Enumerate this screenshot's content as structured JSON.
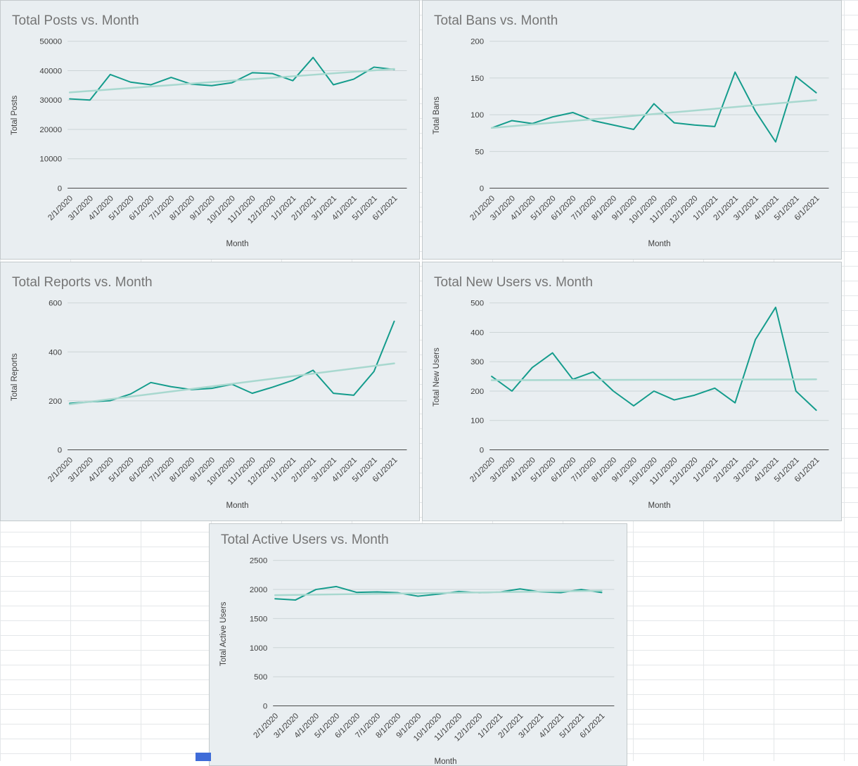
{
  "colors": {
    "series_line": "#149c8c",
    "trend_line": "#a8d8cf",
    "chart_background": "#e9eef1",
    "chart_border": "#c3c9cb",
    "title_text": "#757575",
    "axis_text": "#3f3f3f",
    "gridline": "#ccd4d6",
    "axis_line": "#4a4a4a",
    "grid_cell_line": "#e4e7e9",
    "scroll_fragment": "#3e6bd8"
  },
  "chart_data": [
    {
      "type": "line",
      "title": "Total Posts vs. Month",
      "xlabel": "Month",
      "ylabel": "Total Posts",
      "ylim": [
        0,
        50000
      ],
      "yticks": [
        0,
        10000,
        20000,
        30000,
        40000,
        50000
      ],
      "grid": "horizontal",
      "legend": "none",
      "categories": [
        "2/1/2020",
        "3/1/2020",
        "4/1/2020",
        "5/1/2020",
        "6/1/2020",
        "7/1/2020",
        "8/1/2020",
        "9/1/2020",
        "10/1/2020",
        "11/1/2020",
        "12/1/2020",
        "1/1/2021",
        "2/1/2021",
        "3/1/2021",
        "4/1/2021",
        "5/1/2021",
        "6/1/2021"
      ],
      "series": [
        {
          "name": "Total Posts",
          "values": [
            30400,
            30000,
            38700,
            36100,
            35200,
            37700,
            35400,
            34900,
            35900,
            39300,
            39000,
            36600,
            44500,
            35200,
            37100,
            41200,
            40400
          ]
        }
      ],
      "trendline": {
        "start": 32600,
        "end": 40600
      }
    },
    {
      "type": "line",
      "title": "Total Bans vs. Month",
      "xlabel": "Month",
      "ylabel": "Total Bans",
      "ylim": [
        0,
        200
      ],
      "yticks": [
        0,
        50,
        100,
        150,
        200
      ],
      "grid": "horizontal",
      "legend": "none",
      "categories": [
        "2/1/2020",
        "3/1/2020",
        "4/1/2020",
        "5/1/2020",
        "6/1/2020",
        "7/1/2020",
        "8/1/2020",
        "9/1/2020",
        "10/1/2020",
        "11/1/2020",
        "12/1/2020",
        "1/1/2021",
        "2/1/2021",
        "3/1/2021",
        "4/1/2021",
        "5/1/2021",
        "6/1/2021"
      ],
      "series": [
        {
          "name": "Total Bans",
          "values": [
            82,
            92,
            88,
            97,
            103,
            92,
            86,
            80,
            115,
            89,
            86,
            84,
            158,
            105,
            63,
            152,
            130
          ]
        }
      ],
      "trendline": {
        "start": 82,
        "end": 120
      }
    },
    {
      "type": "line",
      "title": "Total Reports vs. Month",
      "xlabel": "Month",
      "ylabel": "Total Reports",
      "ylim": [
        0,
        600
      ],
      "yticks": [
        0,
        200,
        400,
        600
      ],
      "grid": "horizontal",
      "legend": "none",
      "categories": [
        "2/1/2020",
        "3/1/2020",
        "4/1/2020",
        "5/1/2020",
        "6/1/2020",
        "7/1/2020",
        "8/1/2020",
        "9/1/2020",
        "10/1/2020",
        "11/1/2020",
        "12/1/2020",
        "1/1/2021",
        "2/1/2021",
        "3/1/2021",
        "4/1/2021",
        "5/1/2021",
        "6/1/2021"
      ],
      "series": [
        {
          "name": "Total Reports",
          "values": [
            190,
            196,
            201,
            228,
            275,
            258,
            246,
            251,
            268,
            231,
            256,
            284,
            325,
            231,
            223,
            320,
            525
          ]
        }
      ],
      "trendline": {
        "start": 186,
        "end": 353
      }
    },
    {
      "type": "line",
      "title": "Total New Users vs. Month",
      "xlabel": "Month",
      "ylabel": "Total New Users",
      "ylim": [
        0,
        500
      ],
      "yticks": [
        0,
        100,
        200,
        300,
        400,
        500
      ],
      "grid": "horizontal",
      "legend": "none",
      "categories": [
        "2/1/2020",
        "3/1/2020",
        "4/1/2020",
        "5/1/2020",
        "6/1/2020",
        "7/1/2020",
        "8/1/2020",
        "9/1/2020",
        "10/1/2020",
        "11/1/2020",
        "12/1/2020",
        "1/1/2021",
        "2/1/2021",
        "3/1/2021",
        "4/1/2021",
        "5/1/2021",
        "6/1/2021"
      ],
      "series": [
        {
          "name": "Total New Users",
          "values": [
            250,
            200,
            280,
            330,
            240,
            265,
            200,
            150,
            200,
            170,
            186,
            210,
            160,
            375,
            485,
            200,
            135
          ]
        }
      ],
      "trendline": {
        "start": 237,
        "end": 240
      }
    },
    {
      "type": "line",
      "title": "Total Active Users vs. Month",
      "xlabel": "Month",
      "ylabel": "Total Active Users",
      "ylim": [
        0,
        2500
      ],
      "yticks": [
        0,
        500,
        1000,
        1500,
        2000,
        2500
      ],
      "grid": "horizontal",
      "legend": "none",
      "categories": [
        "2/1/2020",
        "3/1/2020",
        "4/1/2020",
        "5/1/2020",
        "6/1/2020",
        "7/1/2020",
        "8/1/2020",
        "9/1/2020",
        "10/1/2020",
        "11/1/2020",
        "12/1/2020",
        "1/1/2021",
        "2/1/2021",
        "3/1/2021",
        "4/1/2021",
        "5/1/2021",
        "6/1/2021"
      ],
      "series": [
        {
          "name": "Total Active Users",
          "values": [
            1840,
            1820,
            2000,
            2050,
            1950,
            1958,
            1945,
            1885,
            1920,
            1966,
            1944,
            1956,
            2010,
            1958,
            1946,
            2000,
            1948
          ]
        }
      ],
      "trendline": {
        "start": 1902,
        "end": 1978
      }
    }
  ]
}
